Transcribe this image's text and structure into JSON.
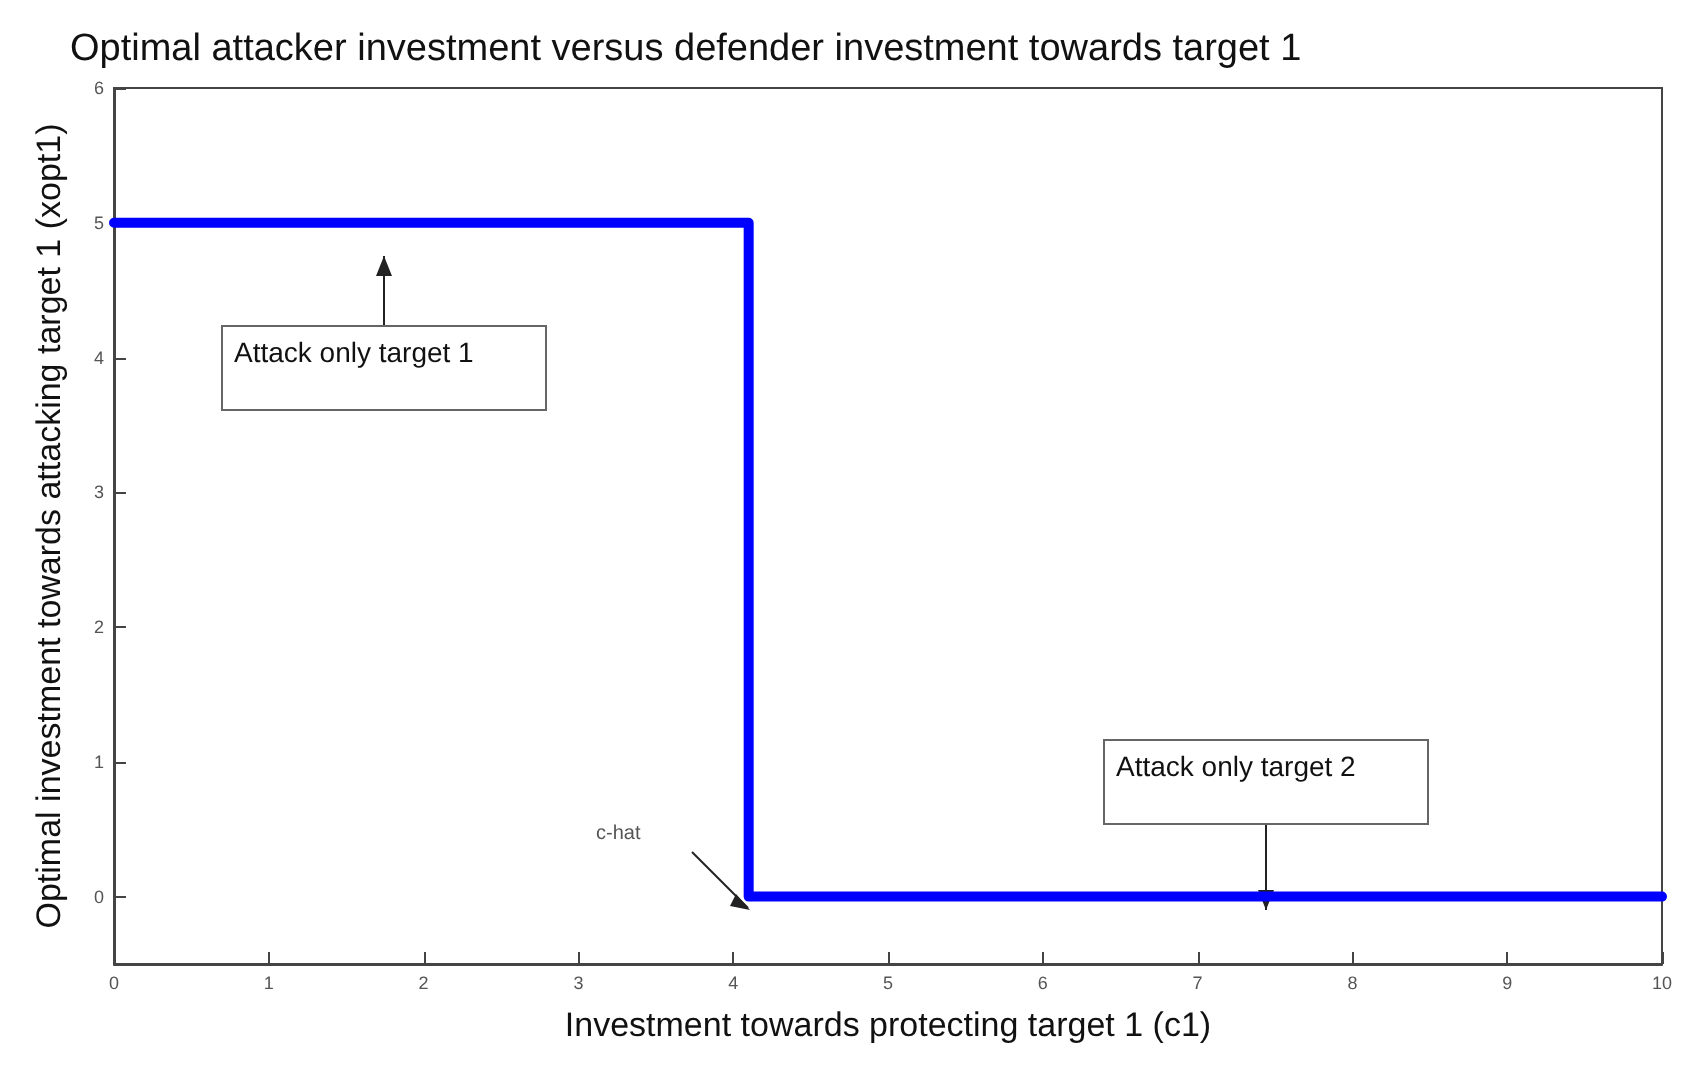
{
  "chart_data": {
    "type": "step",
    "title": "Optimal attacker investment versus defender investment towards target 1",
    "xlabel": "Investment towards protecting target 1 (c1)",
    "ylabel": "Optimal investment towards attacking target 1 (xopt1)",
    "x": [
      0,
      4.1,
      10
    ],
    "series": [
      {
        "color": "#0000ff",
        "values": [
          5,
          0,
          0
        ]
      }
    ],
    "xlim": [
      0,
      10
    ],
    "xticks": [
      0,
      1,
      2,
      3,
      4,
      5,
      6,
      7,
      8,
      9,
      10
    ],
    "ylim": [
      -0.5,
      6
    ],
    "yticks": [
      0,
      1,
      2,
      3,
      4,
      5,
      6
    ],
    "marker": "none",
    "line_style": "solid",
    "annotations": [
      "Attack only target 1",
      "Attack only target 2",
      "c-hat"
    ]
  }
}
